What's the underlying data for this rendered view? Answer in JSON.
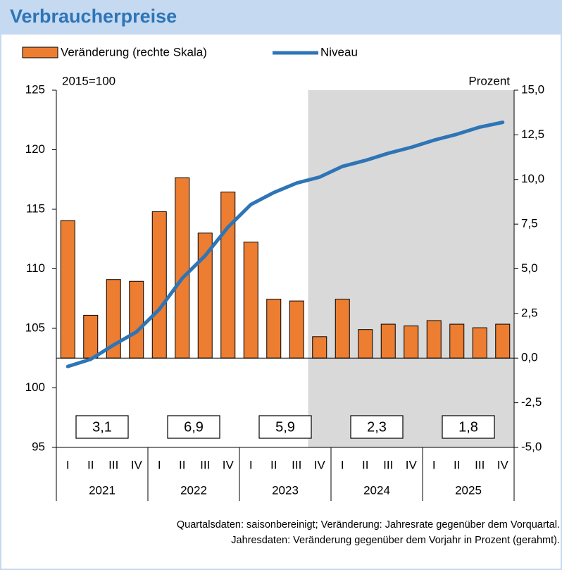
{
  "chart_data": {
    "type": "bar_line",
    "title": "Verbraucherpreise",
    "ylabel": "2015=100",
    "y2label": "Prozent",
    "categories": [
      "I",
      "II",
      "III",
      "IV",
      "I",
      "II",
      "III",
      "IV",
      "I",
      "II",
      "III",
      "IV",
      "I",
      "II",
      "III",
      "IV",
      "I",
      "II",
      "III",
      "IV"
    ],
    "years": [
      "2021",
      "2022",
      "2023",
      "2024",
      "2025"
    ],
    "series": [
      {
        "name": "Veränderung (rechte Skala)",
        "type": "bar",
        "axis": "y2",
        "color": "#ed7d31",
        "values": [
          7.7,
          2.4,
          4.4,
          4.3,
          8.2,
          10.1,
          7.0,
          9.3,
          6.5,
          3.3,
          3.2,
          1.2,
          3.3,
          1.6,
          1.9,
          1.8,
          2.1,
          1.9,
          1.7,
          1.9
        ]
      },
      {
        "name": "Niveau",
        "type": "line",
        "color": "#2e75b6",
        "values": [
          101.8,
          102.4,
          103.6,
          104.7,
          106.6,
          109.2,
          111.1,
          113.5,
          115.4,
          116.4,
          117.2,
          117.7,
          118.6,
          119.1,
          119.7,
          120.2,
          120.8,
          121.3,
          121.9,
          122.3
        ]
      }
    ],
    "annual": {
      "values": [
        3.1,
        6.9,
        5.9,
        2.3,
        1.8
      ],
      "value_labels": [
        "3,1",
        "6,9",
        "5,9",
        "2,3",
        "1,8"
      ]
    },
    "ylim": [
      95,
      125
    ],
    "yticks": [
      95,
      100,
      105,
      110,
      115,
      120,
      125
    ],
    "y2lim": [
      -5,
      15
    ],
    "y2ticks": [
      {
        "value": -5,
        "label": "-5,0"
      },
      {
        "value": -2.5,
        "label": "-2,5"
      },
      {
        "value": 0,
        "label": "0,0"
      },
      {
        "value": 2.5,
        "label": "2,5"
      },
      {
        "value": 5,
        "label": "5,0"
      },
      {
        "value": 7.5,
        "label": "7,5"
      },
      {
        "value": 10,
        "label": "10,0"
      },
      {
        "value": 12.5,
        "label": "12,5"
      },
      {
        "value": 15,
        "label": "15,0"
      }
    ],
    "notes": [
      "Quartalsdaten: saisonbereinigt; Veränderung: Jahresrate gegenüber dem Vorquartal.",
      "Jahresdaten: Veränderung gegenüber dem Vorjahr in Prozent (gerahmt)."
    ]
  }
}
